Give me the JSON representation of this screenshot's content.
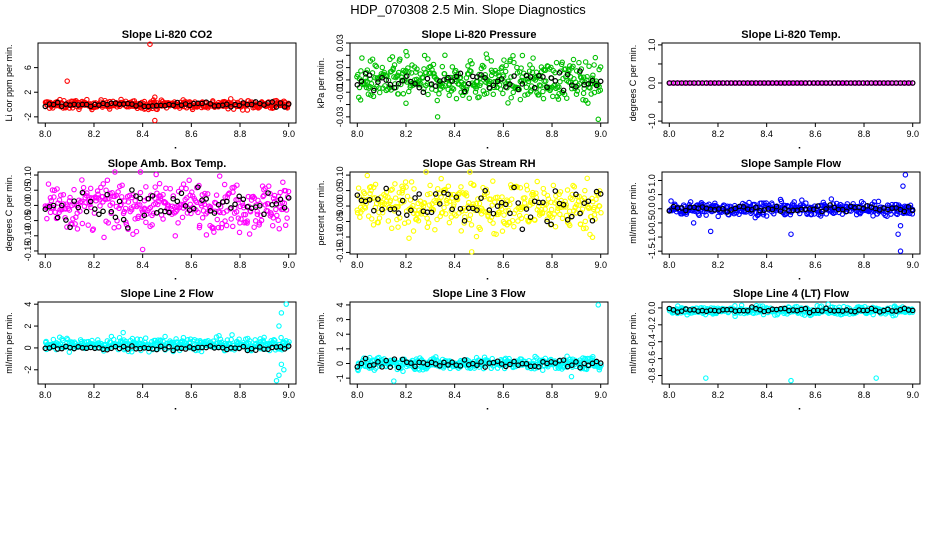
{
  "page_title": "HDP_070308  2.5 Min. Slope Diagnostics",
  "chart_data": [
    {
      "type": "scatter",
      "title": "Slope Li-820 CO2",
      "ylabel": "Li cor ppm per min.",
      "xlim": [
        7.97,
        9.03
      ],
      "ylim": [
        -3,
        10
      ],
      "xticks": [
        "8.0",
        "8.2",
        "8.4",
        "8.6",
        "8.8",
        "9.0"
      ],
      "yticks": [
        -2,
        2,
        6
      ],
      "ytick_labels": [
        "-2",
        "2",
        "6"
      ],
      "color": "#ff0000",
      "center": 0,
      "spread": 0.35,
      "n": 380,
      "outliers": [
        {
          "x": 8.43,
          "y": 9.8
        },
        {
          "x": 8.09,
          "y": 3.8
        },
        {
          "x": 8.45,
          "y": -2.6
        },
        {
          "x": 8.45,
          "y": 1.2
        }
      ],
      "black_spread": 0.2
    },
    {
      "type": "scatter",
      "title": "Slope Li-820 Pressure",
      "ylabel": "kPa per min.",
      "xlim": [
        7.97,
        9.03
      ],
      "ylim": [
        -0.035,
        0.03
      ],
      "xticks": [
        "8.0",
        "8.2",
        "8.4",
        "8.6",
        "8.8",
        "9.0"
      ],
      "yticks": [
        -0.03,
        -0.02,
        -0.01,
        0,
        0.01,
        0.02,
        0.03
      ],
      "ytick_labels": [
        "-0.03",
        "",
        "-0.01",
        "0.00",
        "0.01",
        "",
        "0.03"
      ],
      "color": "#00c000",
      "center": 0,
      "spread": 0.008,
      "n": 420,
      "outliers": [
        {
          "x": 8.2,
          "y": 0.023
        },
        {
          "x": 8.2,
          "y": -0.019
        },
        {
          "x": 8.33,
          "y": -0.03
        },
        {
          "x": 8.99,
          "y": -0.032
        },
        {
          "x": 8.53,
          "y": 0.021
        }
      ],
      "black_spread": 0.005
    },
    {
      "type": "scatter",
      "title": "Slope Li-820 Temp.",
      "ylabel": "degrees C per min.",
      "xlim": [
        7.97,
        9.03
      ],
      "ylim": [
        -1.05,
        1.05
      ],
      "xticks": [
        "8.0",
        "8.2",
        "8.4",
        "8.6",
        "8.8",
        "9.0"
      ],
      "yticks": [
        -1,
        -0.5,
        0,
        0.5,
        1
      ],
      "ytick_labels": [
        "-1.0",
        "",
        "0.0",
        "",
        "1.0"
      ],
      "color": "#ff00ff",
      "center": 0,
      "spread": 0,
      "n": 120,
      "outliers": [],
      "black_spread": 0
    },
    {
      "type": "scatter",
      "title": "Slope Amb. Box Temp.",
      "ylabel": "degrees C per min.",
      "xlim": [
        7.97,
        9.03
      ],
      "ylim": [
        -0.16,
        0.11
      ],
      "xticks": [
        "8.0",
        "8.2",
        "8.4",
        "8.6",
        "8.8",
        "9.0"
      ],
      "yticks": [
        -0.15,
        -0.1,
        -0.05,
        0,
        0.05,
        0.1
      ],
      "ytick_labels": [
        "-0.15",
        "-0.10",
        "-0.05",
        "0.00",
        "0.05",
        "0.10"
      ],
      "color": "#ff00ff",
      "center": 0,
      "spread": 0.04,
      "n": 360,
      "outliers": [
        {
          "x": 8.4,
          "y": -0.145
        }
      ],
      "black_spread": 0.03
    },
    {
      "type": "scatter",
      "title": "Slope Gas Stream RH",
      "ylabel": "percent per min.",
      "xlim": [
        7.97,
        9.03
      ],
      "ylim": [
        -0.155,
        0.11
      ],
      "xticks": [
        "8.0",
        "8.2",
        "8.4",
        "8.6",
        "8.8",
        "9.0"
      ],
      "yticks": [
        -0.15,
        -0.1,
        -0.05,
        0,
        0.05,
        0.1
      ],
      "ytick_labels": [
        "-0.15",
        "-0.10",
        "-0.05",
        "0.00",
        "0.05",
        "0.10"
      ],
      "color": "#ffff00",
      "center": 0,
      "spread": 0.04,
      "n": 380,
      "outliers": [
        {
          "x": 8.47,
          "y": -0.148
        }
      ],
      "black_spread": 0.03
    },
    {
      "type": "scatter",
      "title": "Slope Sample Flow",
      "ylabel": "ml/min per min.",
      "xlim": [
        7.97,
        9.03
      ],
      "ylim": [
        -1.6,
        1.3
      ],
      "xticks": [
        "8.0",
        "8.2",
        "8.4",
        "8.6",
        "8.8",
        "9.0"
      ],
      "yticks": [
        -1.5,
        -1,
        -0.5,
        0,
        0.5,
        1
      ],
      "ytick_labels": [
        "-1.5",
        "-1.0",
        "-0.5",
        "0.0",
        "0.5",
        "1.0"
      ],
      "color": "#0000ff",
      "center": 0,
      "spread": 0.12,
      "n": 380,
      "outliers": [
        {
          "x": 8.97,
          "y": 1.2
        },
        {
          "x": 8.96,
          "y": 0.8
        },
        {
          "x": 8.95,
          "y": -1.5
        },
        {
          "x": 8.94,
          "y": -0.9
        },
        {
          "x": 8.95,
          "y": -0.6
        },
        {
          "x": 8.5,
          "y": -0.9
        },
        {
          "x": 8.17,
          "y": -0.8
        },
        {
          "x": 8.1,
          "y": -0.5
        }
      ],
      "black_spread": 0.06
    },
    {
      "type": "scatter",
      "title": "Slope Line 2 Flow",
      "ylabel": "ml/min per min.",
      "xlim": [
        7.97,
        9.03
      ],
      "ylim": [
        -3.3,
        4.2
      ],
      "xticks": [
        "8.0",
        "8.2",
        "8.4",
        "8.6",
        "8.8",
        "9.0"
      ],
      "yticks": [
        -2,
        0,
        2,
        4
      ],
      "ytick_labels": [
        "-2",
        "0",
        "2",
        "4"
      ],
      "color": "#00ffff",
      "center": 0.3,
      "spread": 0.3,
      "n": 380,
      "outliers": [
        {
          "x": 8.99,
          "y": 4.0
        },
        {
          "x": 8.97,
          "y": 3.2
        },
        {
          "x": 8.96,
          "y": 2.0
        },
        {
          "x": 8.97,
          "y": -1.5
        },
        {
          "x": 8.96,
          "y": -2.5
        },
        {
          "x": 8.95,
          "y": -3.0
        },
        {
          "x": 8.98,
          "y": -2.0
        },
        {
          "x": 8.32,
          "y": 1.4
        }
      ],
      "black_spread": 0.1
    },
    {
      "type": "scatter",
      "title": "Slope Line 3 Flow",
      "ylabel": "ml/min per min.",
      "xlim": [
        7.97,
        9.03
      ],
      "ylim": [
        -1.4,
        4.2
      ],
      "xticks": [
        "8.0",
        "8.2",
        "8.4",
        "8.6",
        "8.8",
        "9.0"
      ],
      "yticks": [
        -1,
        0,
        1,
        2,
        3,
        4
      ],
      "ytick_labels": [
        "-1",
        "0",
        "1",
        "2",
        "3",
        "4"
      ],
      "color": "#00ffff",
      "center": 0,
      "spread": 0.2,
      "n": 380,
      "outliers": [
        {
          "x": 8.99,
          "y": 4.0
        },
        {
          "x": 8.15,
          "y": -1.2
        },
        {
          "x": 8.88,
          "y": -0.9
        }
      ],
      "black_spread": 0.15
    },
    {
      "type": "scatter",
      "title": "Slope Line 4 (LT) Flow",
      "ylabel": "ml/min per min.",
      "xlim": [
        7.97,
        9.03
      ],
      "ylim": [
        -0.9,
        0.07
      ],
      "xticks": [
        "8.0",
        "8.2",
        "8.4",
        "8.6",
        "8.8",
        "9.0"
      ],
      "yticks": [
        -0.8,
        -0.6,
        -0.4,
        -0.2,
        0
      ],
      "ytick_labels": [
        "-0.8",
        "-0.6",
        "-0.4",
        "-0.2",
        "0.0"
      ],
      "color": "#00ffff",
      "center": -0.03,
      "spread": 0.025,
      "n": 380,
      "outliers": [
        {
          "x": 8.15,
          "y": -0.83
        },
        {
          "x": 8.5,
          "y": -0.86
        },
        {
          "x": 8.85,
          "y": -0.83
        }
      ],
      "black_spread": 0.015
    }
  ]
}
